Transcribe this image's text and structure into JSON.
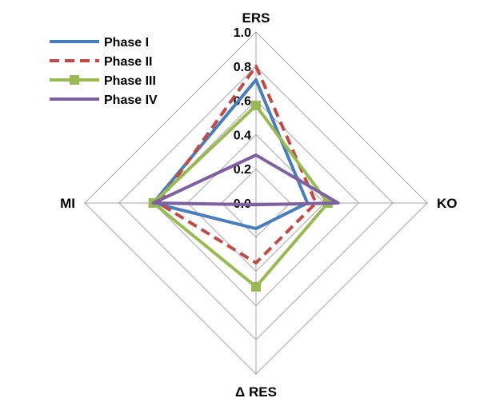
{
  "chart_data": {
    "type": "radar",
    "axes": [
      "ERS",
      "KO",
      "Δ RES",
      "MI"
    ],
    "ticks": [
      "0.0",
      "0.2",
      "0.4",
      "0.6",
      "0.8",
      "1.0"
    ],
    "rlim": [
      0,
      1.0
    ],
    "grid": true,
    "legend_position": "top-left",
    "series": [
      {
        "name": "Phase I",
        "color": "#4a7ebb",
        "dash": "solid",
        "marker": "none",
        "values": [
          0.72,
          0.3,
          0.15,
          0.6
        ]
      },
      {
        "name": "Phase II",
        "color": "#be4b48",
        "dash": "dashed",
        "marker": "none",
        "values": [
          0.8,
          0.35,
          0.35,
          0.57
        ]
      },
      {
        "name": "Phase III",
        "color": "#98b954",
        "dash": "solid",
        "marker": "square",
        "values": [
          0.57,
          0.42,
          0.49,
          0.6
        ]
      },
      {
        "name": "Phase IV",
        "color": "#7d60a0",
        "dash": "solid",
        "marker": "none",
        "values": [
          0.28,
          0.48,
          0.01,
          0.6
        ]
      }
    ]
  }
}
